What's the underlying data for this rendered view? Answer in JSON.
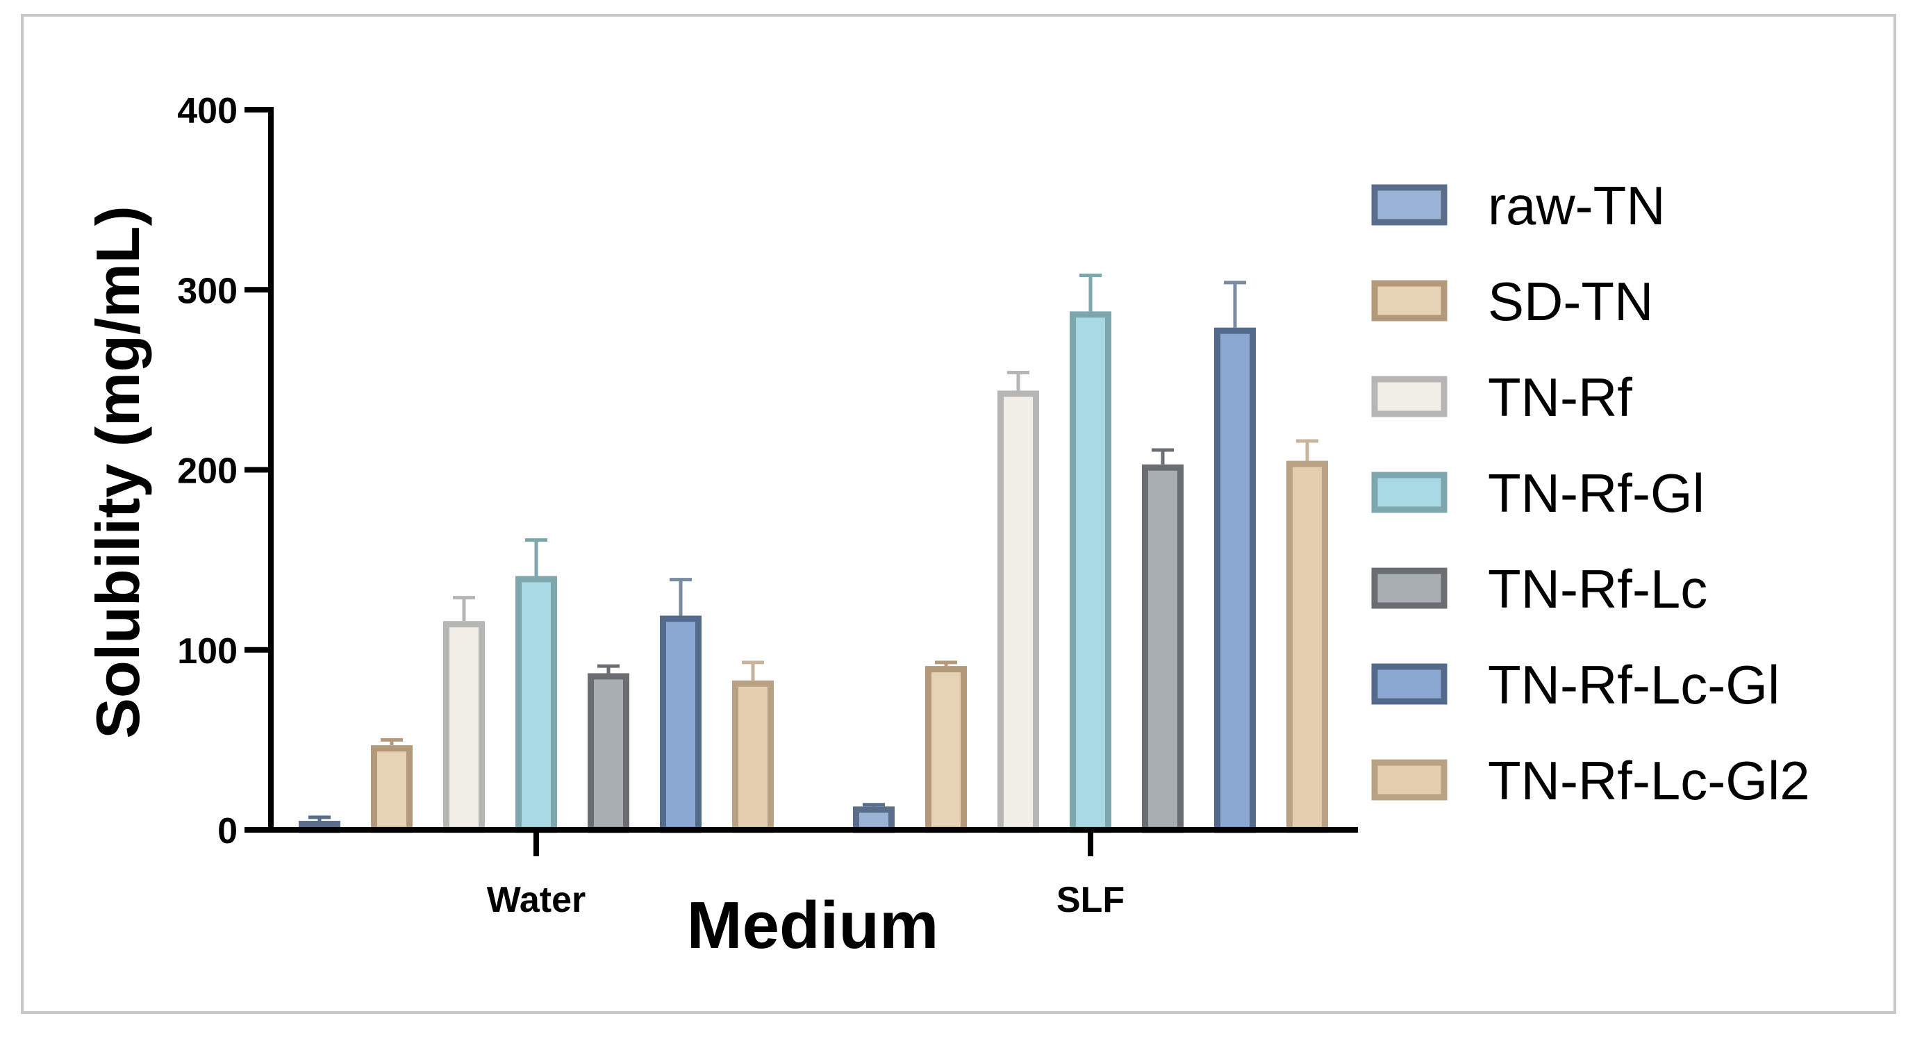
{
  "chart_data": {
    "type": "bar",
    "title": "",
    "xlabel": "Medium",
    "ylabel": "Solubility (mg/mL)",
    "ylim": [
      0,
      400
    ],
    "yticks": [
      0,
      100,
      200,
      300,
      400
    ],
    "categories": [
      "Water",
      "SLF"
    ],
    "series": [
      {
        "name": "raw-TN",
        "values": [
          5,
          13
        ],
        "errors": [
          2,
          1
        ],
        "fill": "#9ab3d6",
        "stroke": "#5a6e8c",
        "err": "#5a6e8c"
      },
      {
        "name": "SD-TN",
        "values": [
          47,
          91
        ],
        "errors": [
          3,
          2
        ],
        "fill": "#e6d2b4",
        "stroke": "#b3987a",
        "err": "#b3987a"
      },
      {
        "name": "TN-Rf",
        "values": [
          116,
          244
        ],
        "errors": [
          13,
          10
        ],
        "fill": "#f1eee7",
        "stroke": "#b6b6b4",
        "err": "#b6b6b4"
      },
      {
        "name": "TN-Rf-Gl",
        "values": [
          141,
          288
        ],
        "errors": [
          20,
          20
        ],
        "fill": "#a8d9e4",
        "stroke": "#7da6ad",
        "err": "#7da6ad"
      },
      {
        "name": "TN-Rf-Lc",
        "values": [
          87,
          203
        ],
        "errors": [
          4,
          8
        ],
        "fill": "#a9aeb2",
        "stroke": "#6a6e72",
        "err": "#6a6e72"
      },
      {
        "name": "TN-Rf-Lc-Gl",
        "values": [
          119,
          279
        ],
        "errors": [
          20,
          25
        ],
        "fill": "#8ba8d3",
        "stroke": "#546a8a",
        "err": "#7a8aa0"
      },
      {
        "name": "TN-Rf-Lc-Gl2",
        "values": [
          83,
          205
        ],
        "errors": [
          10,
          11
        ],
        "fill": "#e3cfb0",
        "stroke": "#b9a284",
        "err": "#c6b49c"
      }
    ]
  }
}
